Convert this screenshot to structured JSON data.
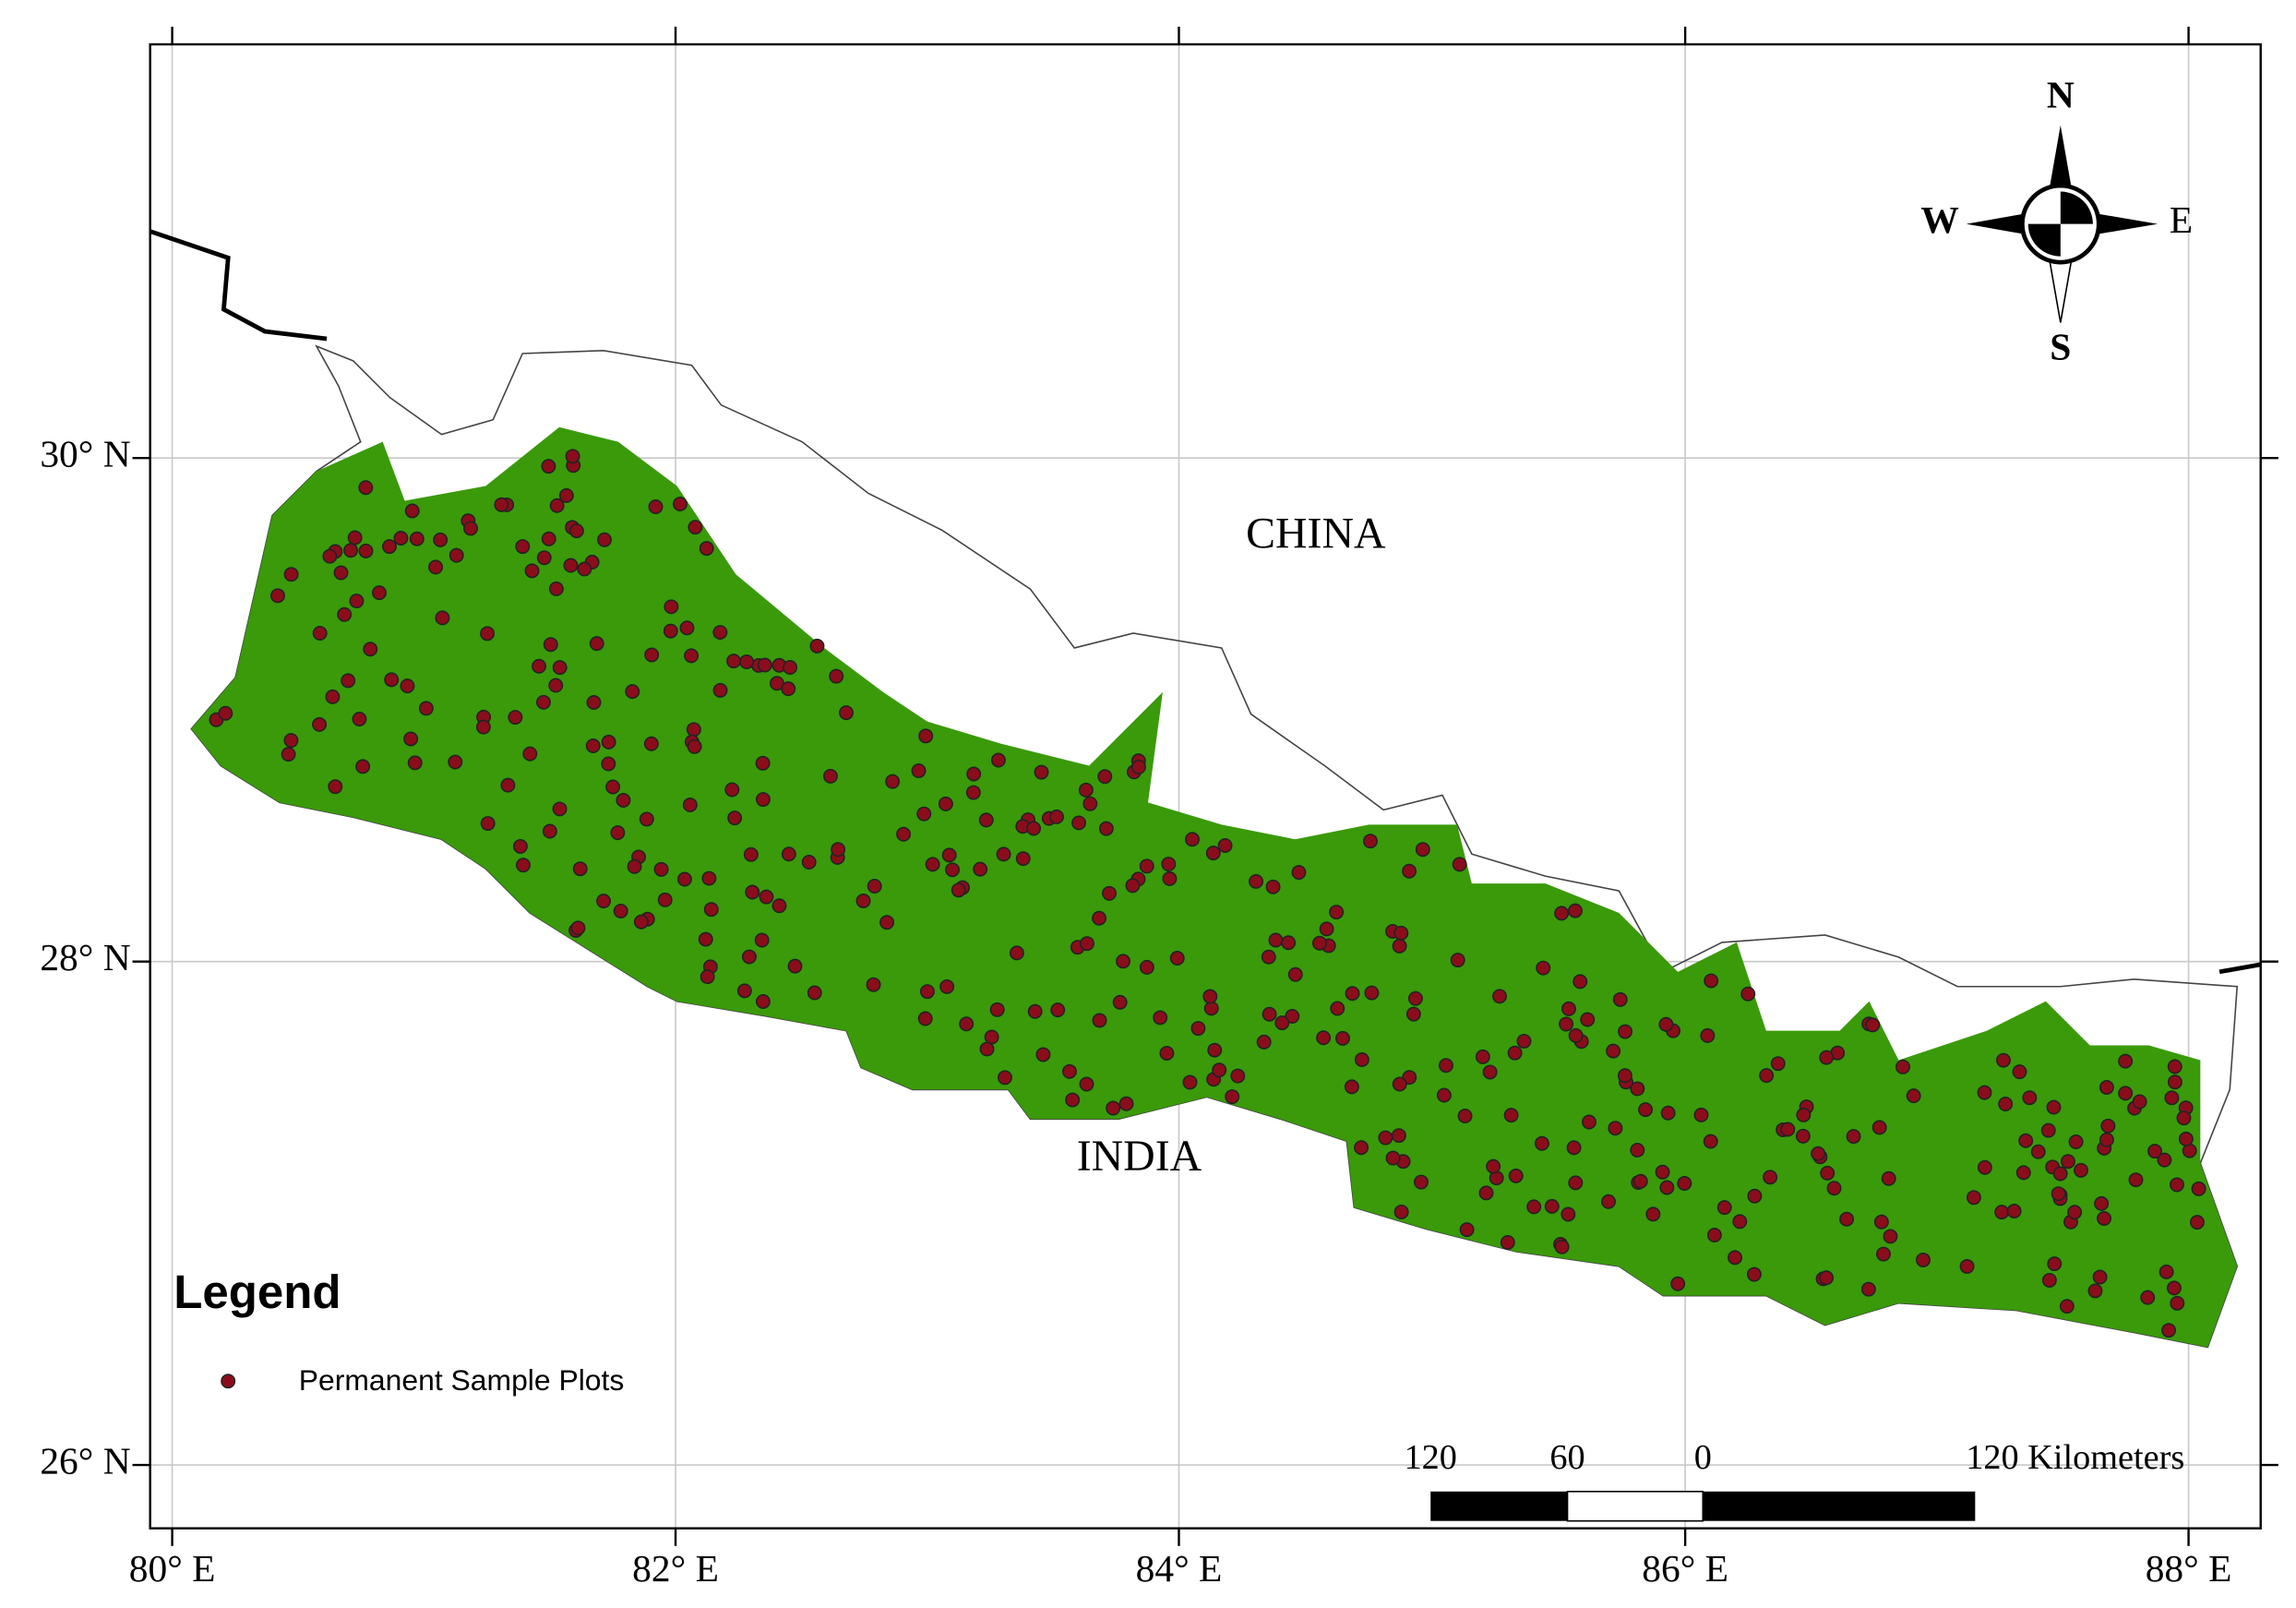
{
  "longitude_labels": [
    "80° E",
    "82° E",
    "84° E",
    "86° E",
    "88° E"
  ],
  "latitude_labels": [
    "30° N",
    "28° N",
    "26° N"
  ],
  "places": {
    "china": "CHINA",
    "india": "INDIA"
  },
  "compass": {
    "n": "N",
    "s": "S",
    "e": "E",
    "w": "W"
  },
  "scale_bar": {
    "labels": [
      "120",
      "60",
      "0",
      "120 Kilometers"
    ]
  },
  "legend": {
    "title": "Legend",
    "items": [
      "Permanent Sample Plots"
    ]
  }
}
